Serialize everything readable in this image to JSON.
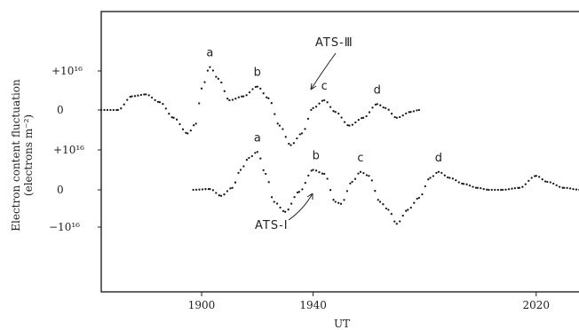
{
  "chart_data": {
    "type": "scatter",
    "xlabel": "UT",
    "ylabel": "Electron content fluctuation (electrons m⁻²)",
    "ylabel_line1": "Electron content fluctuation",
    "ylabel_line2": "(electrons m⁻²)",
    "xlim": [
      1864,
      2036
    ],
    "x_ticks": [
      "1900",
      "1940",
      "2020"
    ],
    "x_tick_values": [
      1900,
      1940,
      2020
    ],
    "grid": false,
    "series": [
      {
        "name": "ATS-Ⅲ",
        "baseline_label_zero": "0",
        "baseline_label_plus": "+10¹⁶",
        "points": [
          [
            1864,
            0
          ],
          [
            1870,
            0
          ],
          [
            1875,
            0.35
          ],
          [
            1880,
            0.4
          ],
          [
            1885,
            0.2
          ],
          [
            1890,
            -0.2
          ],
          [
            1895,
            -0.6
          ],
          [
            1898,
            -0.35
          ],
          [
            1900,
            0.55
          ],
          [
            1903,
            1.1
          ],
          [
            1906,
            0.8
          ],
          [
            1910,
            0.25
          ],
          [
            1915,
            0.35
          ],
          [
            1920,
            0.6
          ],
          [
            1924,
            0.3
          ],
          [
            1928,
            -0.4
          ],
          [
            1932,
            -0.9
          ],
          [
            1936,
            -0.6
          ],
          [
            1940,
            0.05
          ],
          [
            1944,
            0.25
          ],
          [
            1948,
            -0.05
          ],
          [
            1953,
            -0.4
          ],
          [
            1958,
            -0.2
          ],
          [
            1963,
            0.15
          ],
          [
            1966,
            0.05
          ],
          [
            1970,
            -0.2
          ],
          [
            1975,
            -0.05
          ],
          [
            1978,
            0
          ]
        ],
        "peaks": [
          {
            "label": "a",
            "x": 1903,
            "y": 1.1
          },
          {
            "label": "b",
            "x": 1920,
            "y": 0.6
          },
          {
            "label": "c",
            "x": 1944,
            "y": 0.25
          },
          {
            "label": "d",
            "x": 1963,
            "y": 0.15
          }
        ]
      },
      {
        "name": "ATS-Ⅰ",
        "baseline_label_zero": "0",
        "baseline_label_plus": "+10¹⁶",
        "baseline_label_minus": "−10¹⁶",
        "points": [
          [
            1897,
            0
          ],
          [
            1903,
            0.02
          ],
          [
            1907,
            -0.15
          ],
          [
            1911,
            0.05
          ],
          [
            1914,
            0.5
          ],
          [
            1917,
            0.8
          ],
          [
            1920,
            0.95
          ],
          [
            1923,
            0.4
          ],
          [
            1926,
            -0.3
          ],
          [
            1930,
            -0.55
          ],
          [
            1935,
            -0.05
          ],
          [
            1940,
            0.5
          ],
          [
            1944,
            0.4
          ],
          [
            1948,
            -0.3
          ],
          [
            1950,
            -0.35
          ],
          [
            1954,
            0.2
          ],
          [
            1957,
            0.45
          ],
          [
            1960,
            0.35
          ],
          [
            1964,
            -0.3
          ],
          [
            1967,
            -0.5
          ],
          [
            1970,
            -0.85
          ],
          [
            1974,
            -0.5
          ],
          [
            1978,
            -0.2
          ],
          [
            1982,
            0.3
          ],
          [
            1985,
            0.45
          ],
          [
            1989,
            0.3
          ],
          [
            1994,
            0.15
          ],
          [
            1999,
            0.05
          ],
          [
            2003,
            0.0
          ],
          [
            2008,
            0.0
          ],
          [
            2014,
            0.05
          ],
          [
            2020,
            0.35
          ],
          [
            2024,
            0.2
          ],
          [
            2030,
            0.05
          ],
          [
            2036,
            0
          ]
        ],
        "peaks": [
          {
            "label": "a",
            "x": 1920,
            "y": 0.95
          },
          {
            "label": "b",
            "x": 1941,
            "y": 0.5
          },
          {
            "label": "c",
            "x": 1957,
            "y": 0.45
          },
          {
            "label": "d",
            "x": 1985,
            "y": 0.45
          }
        ]
      }
    ]
  }
}
